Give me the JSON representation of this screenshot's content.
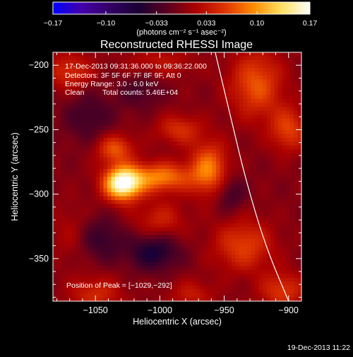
{
  "chart_data": {
    "type": "heatmap",
    "title": "Reconstructed RHESSI Image",
    "xlabel": "Heliocentric X (arcsec)",
    "ylabel": "Heliocentric Y (arcsec)",
    "xlim": [
      -1083,
      -890
    ],
    "ylim": [
      -383,
      -190
    ],
    "xticks": [
      -1050,
      -1000,
      -950,
      -900
    ],
    "xtick_labels": [
      "−1050",
      "−1000",
      "−950",
      "−900"
    ],
    "yticks": [
      -200,
      -250,
      -300,
      -350
    ],
    "ytick_labels": [
      "−200",
      "−250",
      "−300",
      "−350"
    ],
    "colorbar": {
      "range": [
        -0.17,
        0.17
      ],
      "ticks": [
        -0.17,
        -0.1,
        -0.033,
        0.033,
        0.1,
        0.17
      ],
      "tick_labels": [
        "−0.17",
        "−0.10",
        "−0.033",
        "0.033",
        "0.10",
        "0.17"
      ],
      "unit_label": "(photons cm⁻² s⁻¹ asec⁻²)",
      "colors": [
        "#0000ff",
        "#4400aa",
        "#330066",
        "#1a0033",
        "#5a0020",
        "#aa0000",
        "#dd3300",
        "#ff8800",
        "#ffe060",
        "#ffffff"
      ]
    },
    "annotations": {
      "time_range": "17-Dec-2013 09:31:36.000 to 09:36:22.000",
      "detectors": "Detectors: 3F 5F 6F 7F 8F 9F, Att 0",
      "energy": "Energy Range: 3.0 - 6.0 keV",
      "clean": "Clean",
      "total_counts": "Total counts: 5.46E+04",
      "peak": "Position of Peak = [−1029,−292]"
    },
    "peak": [
      -1029,
      -292
    ],
    "features": [
      {
        "kind": "source",
        "x": -1029,
        "y": -292,
        "sx": 10,
        "sy": 9,
        "amp": 0.17
      },
      {
        "kind": "source",
        "x": -1000,
        "y": -287,
        "sx": 18,
        "sy": 8,
        "amp": 0.09
      },
      {
        "kind": "source",
        "x": -962,
        "y": -280,
        "sx": 10,
        "sy": 14,
        "amp": 0.085
      },
      {
        "kind": "source",
        "x": -1035,
        "y": -265,
        "sx": 10,
        "sy": 8,
        "amp": 0.07
      },
      {
        "kind": "source",
        "x": -985,
        "y": -250,
        "sx": 12,
        "sy": 8,
        "amp": 0.05
      },
      {
        "kind": "source",
        "x": -1000,
        "y": -320,
        "sx": 14,
        "sy": 10,
        "amp": 0.04
      },
      {
        "kind": "source",
        "x": -925,
        "y": -215,
        "sx": 14,
        "sy": 18,
        "amp": 0.07
      },
      {
        "kind": "source",
        "x": -900,
        "y": -250,
        "sx": 10,
        "sy": 12,
        "amp": 0.06
      },
      {
        "kind": "source",
        "x": -935,
        "y": -340,
        "sx": 16,
        "sy": 14,
        "amp": 0.06
      },
      {
        "kind": "source",
        "x": -905,
        "y": -375,
        "sx": 12,
        "sy": 10,
        "amp": 0.055
      },
      {
        "kind": "source",
        "x": -1070,
        "y": -205,
        "sx": 12,
        "sy": 10,
        "amp": 0.05
      },
      {
        "kind": "source",
        "x": -1050,
        "y": -378,
        "sx": 14,
        "sy": 10,
        "amp": 0.045
      },
      {
        "kind": "source",
        "x": -975,
        "y": -378,
        "sx": 12,
        "sy": 8,
        "amp": 0.035
      },
      {
        "kind": "source",
        "x": -1000,
        "y": -198,
        "sx": 18,
        "sy": 8,
        "amp": 0.03
      },
      {
        "kind": "source",
        "x": -1070,
        "y": -330,
        "sx": 10,
        "sy": 16,
        "amp": 0.02
      },
      {
        "kind": "hole",
        "x": -1005,
        "y": -345,
        "sx": 14,
        "sy": 10,
        "amp": -0.06
      },
      {
        "kind": "hole",
        "x": -1045,
        "y": -335,
        "sx": 12,
        "sy": 12,
        "amp": -0.04
      },
      {
        "kind": "hole",
        "x": -1055,
        "y": -240,
        "sx": 14,
        "sy": 14,
        "amp": -0.035
      },
      {
        "kind": "hole",
        "x": -1015,
        "y": -220,
        "sx": 12,
        "sy": 10,
        "amp": -0.03
      },
      {
        "kind": "hole",
        "x": -945,
        "y": -300,
        "sx": 8,
        "sy": 10,
        "amp": -0.035
      }
    ],
    "limb_curve": [
      [
        -957,
        -190
      ],
      [
        -945,
        -240
      ],
      [
        -933,
        -290
      ],
      [
        -918,
        -340
      ],
      [
        -900,
        -383
      ]
    ]
  },
  "footer": {
    "timestamp": "19-Dec-2013 11:22"
  }
}
